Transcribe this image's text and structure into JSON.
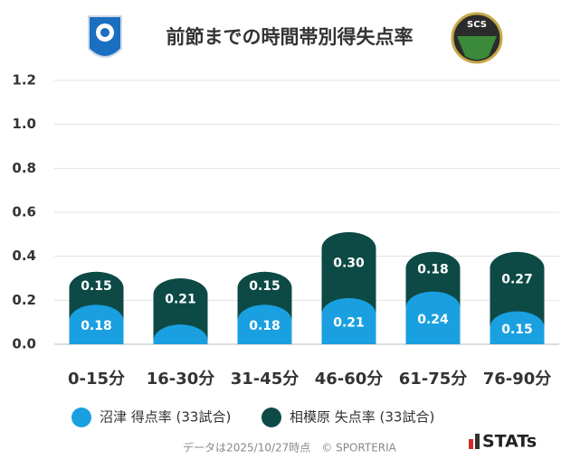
{
  "chart_data": {
    "type": "stacked_bar",
    "title": "前節までの時間帯別得失点率",
    "logo_text": "SCS",
    "categories": [
      "0-15分",
      "16-30分",
      "31-45分",
      "46-60分",
      "61-75分",
      "76-90分"
    ],
    "series": [
      {
        "name": "沼津 得点率 (33試合)",
        "color": "#1aa0e0",
        "values": [
          0.18,
          0.09,
          0.18,
          0.21,
          0.24,
          0.15
        ],
        "value_labels": [
          "0.18",
          null,
          "0.18",
          "0.21",
          "0.24",
          "0.15"
        ]
      },
      {
        "name": "相模原 失点率 (33試合)",
        "color": "#0d4a45",
        "values": [
          0.15,
          0.21,
          0.15,
          0.3,
          0.18,
          0.27
        ],
        "value_labels": [
          "0.15",
          "0.21",
          "0.15",
          "0.30",
          "0.18",
          "0.27"
        ]
      }
    ],
    "ylim": [
      0,
      1.2
    ],
    "yticks": [
      {
        "value": 0,
        "label": "0.0"
      },
      0.2,
      0.4,
      0.6,
      0.8,
      {
        "value": 1,
        "label": "1.0"
      },
      1.2
    ],
    "grid": true,
    "note": "データは2025/10/27時点　© SPORTERIA",
    "brand": "STATs"
  }
}
